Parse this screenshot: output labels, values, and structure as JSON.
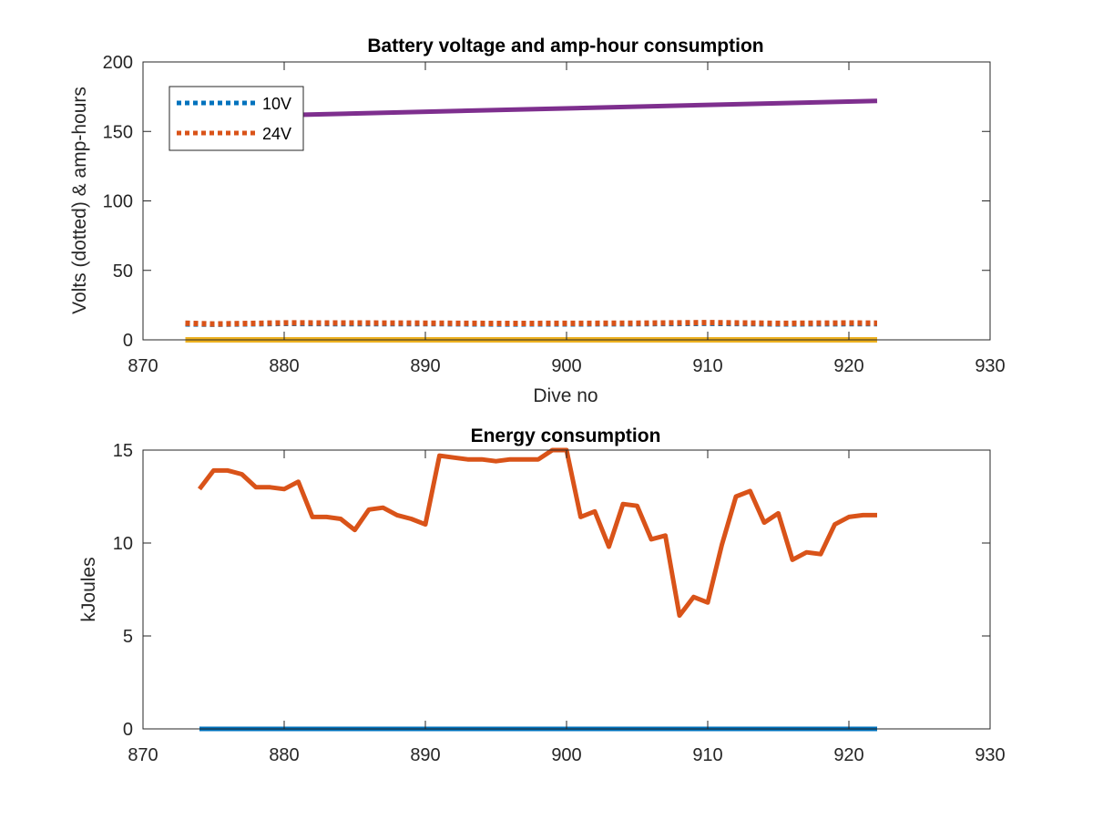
{
  "chart_data": [
    {
      "type": "line",
      "title": "Battery voltage and amp-hour consumption",
      "xlabel": "Dive no",
      "ylabel": "Volts (dotted) & amp-hours",
      "xlim": [
        870,
        930
      ],
      "ylim": [
        0,
        200
      ],
      "xticks": [
        "870",
        "880",
        "890",
        "900",
        "910",
        "920",
        "930"
      ],
      "yticks": [
        "0",
        "50",
        "100",
        "150",
        "200"
      ],
      "grid": false,
      "legend": {
        "position": "top-left",
        "entries": [
          "10V",
          "24V"
        ]
      },
      "series": [
        {
          "name": "10V",
          "style": "dotted",
          "color": "#0072BD",
          "x": [
            873,
            875,
            880,
            885,
            890,
            895,
            900,
            905,
            910,
            915,
            920,
            922
          ],
          "y": [
            11.5,
            11.2,
            11.8,
            11.6,
            11.7,
            11.4,
            11.5,
            11.6,
            11.9,
            11.5,
            11.6,
            11.6
          ]
        },
        {
          "name": "24V",
          "style": "dotted",
          "color": "#D95319",
          "x": [
            873,
            875,
            880,
            885,
            890,
            895,
            900,
            905,
            910,
            915,
            920,
            922
          ],
          "y": [
            12.0,
            11.4,
            12.2,
            12.1,
            12.0,
            11.8,
            11.9,
            12.0,
            12.4,
            11.9,
            12.1,
            12.0
          ]
        },
        {
          "style": "solid",
          "color": "#7E2F8E",
          "x": [
            873,
            922
          ],
          "y": [
            160,
            172
          ]
        },
        {
          "style": "solid",
          "color": "#EDB120",
          "x": [
            873,
            922
          ],
          "y": [
            0,
            0
          ]
        }
      ]
    },
    {
      "type": "line",
      "title": "Energy consumption",
      "xlabel": "",
      "ylabel": "kJoules",
      "xlim": [
        870,
        930
      ],
      "ylim": [
        0,
        15
      ],
      "xticks": [
        "870",
        "880",
        "890",
        "900",
        "910",
        "920",
        "930"
      ],
      "yticks": [
        "0",
        "5",
        "10",
        "15"
      ],
      "grid": false,
      "series": [
        {
          "style": "solid",
          "color": "#0072BD",
          "x": [
            874,
            922
          ],
          "y": [
            0,
            0
          ]
        },
        {
          "style": "solid",
          "color": "#D95319",
          "x": [
            874,
            875,
            876,
            877,
            878,
            879,
            880,
            881,
            882,
            883,
            884,
            885,
            886,
            887,
            888,
            889,
            890,
            891,
            892,
            893,
            894,
            895,
            896,
            897,
            898,
            899,
            900,
            901,
            902,
            903,
            904,
            905,
            906,
            907,
            908,
            909,
            910,
            911,
            912,
            913,
            914,
            915,
            916,
            917,
            918,
            919,
            920,
            921,
            922
          ],
          "y": [
            12.9,
            13.9,
            13.9,
            13.7,
            13.0,
            13.0,
            12.9,
            13.3,
            11.4,
            11.4,
            11.3,
            10.7,
            11.8,
            11.9,
            11.5,
            11.3,
            11.0,
            14.7,
            14.6,
            14.5,
            14.5,
            14.4,
            14.5,
            14.5,
            14.5,
            15.0,
            15.0,
            11.4,
            11.7,
            9.8,
            12.1,
            12.0,
            10.2,
            10.4,
            6.1,
            7.1,
            6.8,
            9.9,
            12.5,
            12.8,
            11.1,
            11.6,
            9.1,
            9.5,
            9.4,
            11.0,
            11.4,
            11.5,
            11.5
          ]
        }
      ]
    }
  ]
}
